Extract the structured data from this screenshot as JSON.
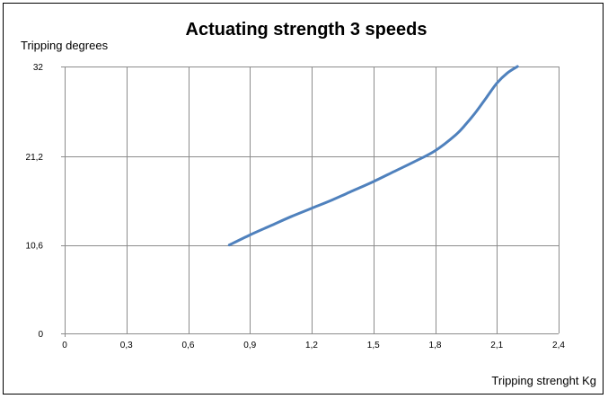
{
  "chart_data": {
    "type": "line",
    "title": "Actuating strength 3 speeds",
    "xlabel": "Tripping strenght Kg",
    "ylabel": "Tripping degrees",
    "xlim": [
      0,
      2.4
    ],
    "ylim": [
      0,
      32
    ],
    "xticks": [
      0,
      0.3,
      0.6,
      0.9,
      1.2,
      1.5,
      1.8,
      2.1,
      2.4
    ],
    "xtick_labels": [
      "0",
      "0,3",
      "0,6",
      "0,9",
      "1,2",
      "1,5",
      "1,8",
      "2,1",
      "2,4"
    ],
    "yticks": [
      0,
      10.6,
      21.2,
      32
    ],
    "ytick_labels": [
      "0",
      "10,6",
      "21,2",
      "32"
    ],
    "grid": true,
    "legend": "none",
    "series": [
      {
        "color": "#4f81bd",
        "x": [
          0.8,
          0.9,
          1.0,
          1.1,
          1.2,
          1.3,
          1.4,
          1.5,
          1.6,
          1.7,
          1.8,
          1.9,
          1.95,
          2.0,
          2.05,
          2.1,
          2.15,
          2.2
        ],
        "y": [
          10.6,
          11.8,
          12.9,
          14.0,
          15.0,
          16.0,
          17.1,
          18.2,
          19.4,
          20.6,
          21.9,
          23.8,
          25.1,
          26.6,
          28.3,
          30.0,
          31.2,
          32.0
        ]
      }
    ]
  }
}
